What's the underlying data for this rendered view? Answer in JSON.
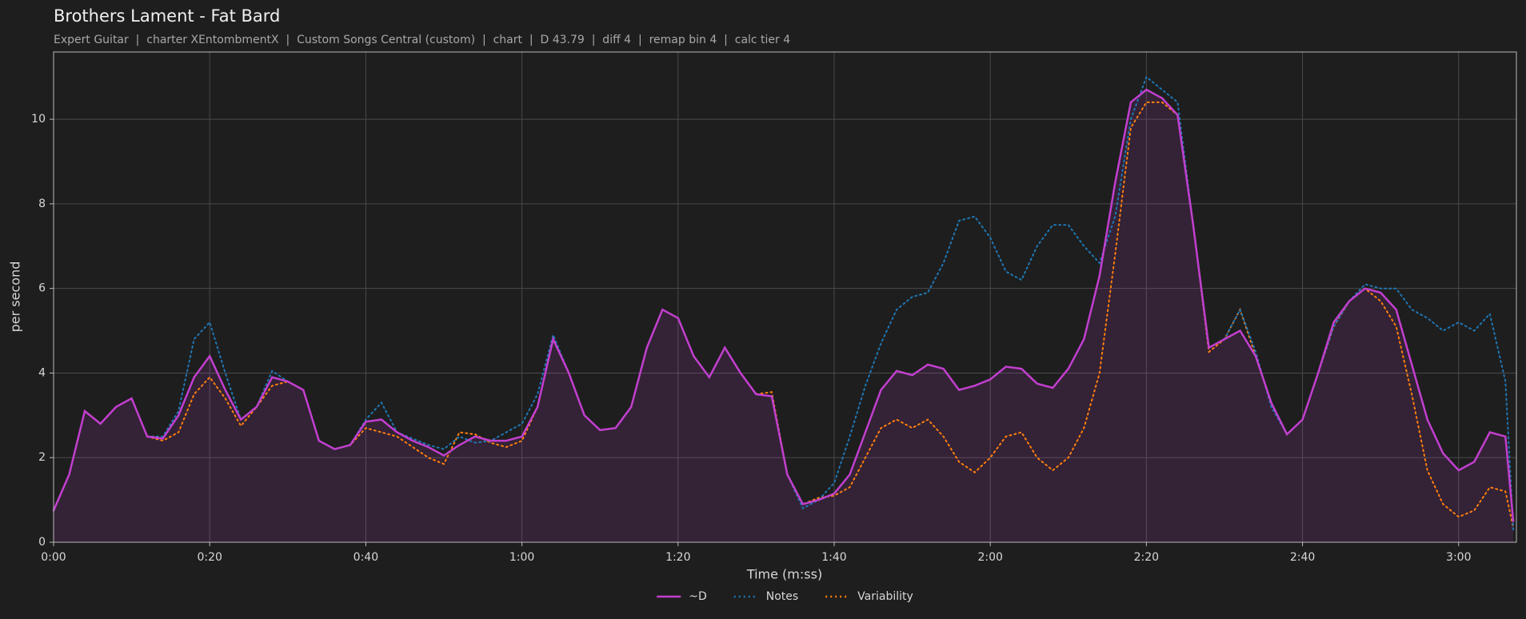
{
  "chart_data": {
    "type": "line",
    "title": "Brothers Lament - Fat Bard",
    "subtitle": "Expert Guitar  |  charter XEntombmentX  |  Custom Songs Central (custom)  |  chart  |  D 43.79  |  diff 4  |  remap bin 4  |  calc tier 4",
    "x_label": "Time (m:ss)",
    "y_label": "per second",
    "x": [
      0,
      2,
      4,
      6,
      8,
      10,
      12,
      14,
      16,
      18,
      20,
      22,
      24,
      26,
      28,
      30,
      32,
      34,
      36,
      38,
      40,
      42,
      44,
      46,
      48,
      50,
      52,
      54,
      56,
      58,
      60,
      62,
      64,
      66,
      68,
      70,
      72,
      74,
      76,
      78,
      80,
      82,
      84,
      86,
      88,
      90,
      92,
      94,
      96,
      98,
      100,
      102,
      104,
      106,
      108,
      110,
      112,
      114,
      116,
      118,
      120,
      122,
      124,
      126,
      128,
      130,
      132,
      134,
      136,
      138,
      140,
      142,
      144,
      146,
      148,
      150,
      152,
      154,
      156,
      158,
      160,
      162,
      164,
      166,
      168,
      170,
      172,
      174,
      176,
      178,
      180,
      182,
      184,
      186,
      187
    ],
    "series": [
      {
        "name": "~D",
        "color": "#c23fcf",
        "style": "solid",
        "fill": true,
        "values": [
          0.75,
          1.6,
          3.1,
          2.8,
          3.2,
          3.4,
          2.5,
          2.45,
          3.0,
          3.9,
          4.4,
          3.6,
          2.9,
          3.2,
          3.9,
          3.8,
          3.6,
          2.4,
          2.2,
          2.3,
          2.85,
          2.9,
          2.6,
          2.4,
          2.25,
          2.05,
          2.3,
          2.5,
          2.4,
          2.4,
          2.5,
          3.2,
          4.8,
          4.0,
          3.0,
          2.65,
          2.7,
          3.2,
          4.6,
          5.5,
          5.3,
          4.4,
          3.9,
          4.6,
          4.0,
          3.5,
          3.45,
          1.6,
          0.9,
          1.0,
          1.15,
          1.6,
          2.6,
          3.6,
          4.05,
          3.95,
          4.2,
          4.1,
          3.6,
          3.7,
          3.85,
          4.15,
          4.1,
          3.75,
          3.65,
          4.1,
          4.8,
          6.3,
          8.5,
          10.4,
          10.7,
          10.5,
          10.1,
          7.5,
          4.6,
          4.8,
          5.0,
          4.4,
          3.3,
          2.55,
          2.9,
          4.0,
          5.2,
          5.7,
          6.0,
          5.9,
          5.5,
          4.2,
          2.9,
          2.1,
          1.7,
          1.9,
          2.6,
          2.5,
          0.5
        ]
      },
      {
        "name": "Notes",
        "color": "#1f77b4",
        "style": "dotted",
        "fill": false,
        "values": [
          0.75,
          1.6,
          3.1,
          2.8,
          3.2,
          3.4,
          2.5,
          2.5,
          3.1,
          4.8,
          5.2,
          4.0,
          2.9,
          3.2,
          4.05,
          3.8,
          3.6,
          2.4,
          2.2,
          2.3,
          2.9,
          3.3,
          2.6,
          2.45,
          2.3,
          2.2,
          2.5,
          2.35,
          2.4,
          2.6,
          2.8,
          3.5,
          4.9,
          4.0,
          3.0,
          2.65,
          2.7,
          3.2,
          4.6,
          5.5,
          5.3,
          4.4,
          3.9,
          4.6,
          4.0,
          3.5,
          3.45,
          1.6,
          0.8,
          1.0,
          1.4,
          2.5,
          3.7,
          4.7,
          5.5,
          5.8,
          5.9,
          6.6,
          7.6,
          7.7,
          7.2,
          6.4,
          6.2,
          7.0,
          7.5,
          7.5,
          7.0,
          6.6,
          7.7,
          10.0,
          11.0,
          10.7,
          10.4,
          7.5,
          4.6,
          4.8,
          5.5,
          4.5,
          3.2,
          2.55,
          2.9,
          4.0,
          5.1,
          5.7,
          6.1,
          6.0,
          6.0,
          5.5,
          5.3,
          5.0,
          5.2,
          5.0,
          5.4,
          3.8,
          0.3
        ]
      },
      {
        "name": "Variability",
        "color": "#ff7f0e",
        "style": "dotted",
        "fill": false,
        "values": [
          0.75,
          1.6,
          3.1,
          2.8,
          3.2,
          3.4,
          2.5,
          2.4,
          2.6,
          3.5,
          3.9,
          3.4,
          2.75,
          3.2,
          3.7,
          3.8,
          3.6,
          2.4,
          2.2,
          2.3,
          2.7,
          2.6,
          2.5,
          2.25,
          2.0,
          1.85,
          2.6,
          2.55,
          2.35,
          2.25,
          2.4,
          3.2,
          4.8,
          4.0,
          3.0,
          2.65,
          2.7,
          3.2,
          4.6,
          5.5,
          5.3,
          4.4,
          3.9,
          4.6,
          4.0,
          3.5,
          3.55,
          1.6,
          0.9,
          1.05,
          1.1,
          1.3,
          2.0,
          2.7,
          2.9,
          2.7,
          2.9,
          2.5,
          1.9,
          1.65,
          2.0,
          2.5,
          2.6,
          2.0,
          1.7,
          2.0,
          2.7,
          4.0,
          6.8,
          9.8,
          10.4,
          10.4,
          10.1,
          7.5,
          4.5,
          4.8,
          5.5,
          4.4,
          3.3,
          2.55,
          2.9,
          4.0,
          5.1,
          5.7,
          6.0,
          5.7,
          5.1,
          3.5,
          1.7,
          0.9,
          0.6,
          0.75,
          1.3,
          1.2,
          0.35
        ]
      }
    ],
    "xlim": [
      0,
      187.4
    ],
    "ylim": [
      0,
      11.59
    ],
    "xticks": [
      {
        "value": 0,
        "label": "0:00"
      },
      {
        "value": 20,
        "label": "0:20"
      },
      {
        "value": 40,
        "label": "0:40"
      },
      {
        "value": 60,
        "label": "1:00"
      },
      {
        "value": 80,
        "label": "1:20"
      },
      {
        "value": 100,
        "label": "1:40"
      },
      {
        "value": 120,
        "label": "2:00"
      },
      {
        "value": 140,
        "label": "2:20"
      },
      {
        "value": 160,
        "label": "2:40"
      },
      {
        "value": 180,
        "label": "3:00"
      }
    ],
    "yticks": [
      0,
      2,
      4,
      6,
      8,
      10
    ],
    "grid": true,
    "legend": "bottom"
  }
}
